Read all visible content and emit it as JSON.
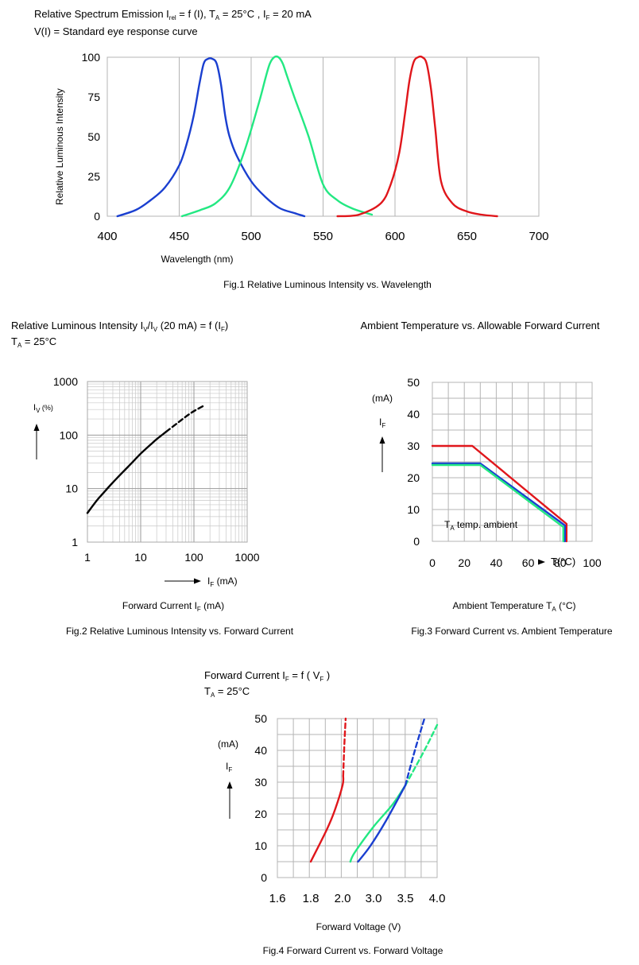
{
  "colors": {
    "blue": "#1a3fd0",
    "green": "#23e882",
    "red": "#e0161b",
    "black": "#000000"
  },
  "chart_data": [
    {
      "id": "fig1",
      "type": "line",
      "header_line1": {
        "main": "Relative Spectrum Emission I",
        "rel_sub": "rel",
        "mid": " = f (I), T",
        "a_sub": "A",
        "tail": " = 25°C , I",
        "f_sub": "F",
        "end": " = 20 mA"
      },
      "header_line2": "V(I) = Standard eye response curve",
      "ylabel": "Relative Luminous Intensity",
      "xlabel": "Wavelength (nm)",
      "caption": "Fig.1 Relative Luminous Intensity vs. Wavelength",
      "xlim": [
        400,
        700
      ],
      "ylim": [
        0,
        100
      ],
      "xticks": [
        400,
        450,
        500,
        550,
        600,
        650,
        700
      ],
      "yticks": [
        0,
        25,
        50,
        75,
        100
      ],
      "series": [
        {
          "name": "blue",
          "color": "#1a3fd0",
          "x": [
            407,
            420,
            430,
            440,
            450,
            455,
            460,
            464,
            467,
            470,
            473,
            476,
            479,
            482,
            485,
            490,
            500,
            510,
            520,
            530,
            537
          ],
          "y": [
            0,
            4,
            10,
            18,
            32,
            45,
            63,
            83,
            96,
            99,
            99,
            96,
            83,
            63,
            50,
            38,
            22,
            12,
            5,
            2,
            0
          ]
        },
        {
          "name": "green",
          "color": "#23e882",
          "x": [
            452,
            465,
            475,
            485,
            495,
            505,
            510,
            513,
            516,
            519,
            522,
            525,
            530,
            540,
            550,
            560,
            570,
            580,
            584
          ],
          "y": [
            0,
            4,
            8,
            18,
            40,
            70,
            87,
            96,
            100,
            100,
            96,
            88,
            75,
            50,
            20,
            10,
            5,
            2,
            1
          ]
        },
        {
          "name": "red",
          "color": "#e0161b",
          "x": [
            560,
            575,
            590,
            597,
            603,
            607,
            610,
            613,
            616,
            619,
            622,
            625,
            628,
            632,
            640,
            650,
            660,
            671
          ],
          "y": [
            0,
            1,
            8,
            20,
            40,
            65,
            85,
            97,
            100,
            100,
            96,
            80,
            55,
            22,
            8,
            3,
            1,
            0
          ]
        }
      ]
    },
    {
      "id": "fig2",
      "type": "line",
      "header": {
        "a": "Relative Luminous Intensity I",
        "v1": "V",
        "b": "/I",
        "v2": "V",
        "c": " (20 mA) = f (I",
        "f": "F",
        "d": ")"
      },
      "header_ta": {
        "a": "T",
        "sub": "A",
        "b": " = 25°C"
      },
      "axis_y_name": {
        "a": "I",
        "sub": "V",
        "b": " (%)"
      },
      "axis_x_name": {
        "a": "I",
        "sub": "F",
        "b": " (mA)"
      },
      "bottom_label": {
        "a": "Forward Current I",
        "sub": "F",
        "b": " (mA)"
      },
      "caption": "Fig.2 Relative Luminous Intensity vs. Forward Current",
      "xscale": "log",
      "yscale": "log",
      "xlim": [
        1,
        1000
      ],
      "ylim": [
        1,
        1000
      ],
      "xticks": [
        1,
        10,
        100,
        1000
      ],
      "yticks": [
        1,
        10,
        100,
        1000
      ],
      "series": [
        {
          "name": "solid",
          "style": "solid",
          "color": "#000000",
          "x": [
            1,
            1.5,
            2,
            3,
            5,
            7,
            10,
            15,
            20,
            30
          ],
          "y": [
            3.5,
            6,
            8.3,
            13,
            22,
            31,
            45,
            65,
            84,
            115
          ]
        },
        {
          "name": "extrapolated",
          "style": "dashed",
          "color": "#000000",
          "x": [
            30,
            50,
            70,
            100,
            150
          ],
          "y": [
            115,
            170,
            220,
            280,
            350
          ]
        }
      ]
    },
    {
      "id": "fig3",
      "type": "line",
      "header": "Ambient Temperature vs. Allowable Forward Current",
      "unit_label": "(mA)",
      "axis_y_name": {
        "a": "I",
        "sub": "F"
      },
      "axis_x_name": "T(°C)",
      "annotation": {
        "a": "T",
        "sub": "A",
        "b": " temp. ambient"
      },
      "bottom_label": {
        "a": "Ambient Temperature T",
        "sub": "A",
        "b": " (°C)"
      },
      "caption": "Fig.3 Forward Current vs. Ambient Temperature",
      "xlim": [
        0,
        100
      ],
      "ylim": [
        0,
        50
      ],
      "xticks": [
        0,
        20,
        40,
        60,
        80,
        100
      ],
      "yticks": [
        0,
        10,
        20,
        30,
        40,
        50
      ],
      "series": [
        {
          "name": "red",
          "color": "#e0161b",
          "x": [
            0,
            25,
            84,
            84
          ],
          "y": [
            30,
            30,
            5.5,
            0
          ]
        },
        {
          "name": "blue",
          "color": "#1a3fd0",
          "x": [
            0,
            30,
            83,
            83
          ],
          "y": [
            24.5,
            24.5,
            5,
            0
          ]
        },
        {
          "name": "green",
          "color": "#23e882",
          "x": [
            0,
            30,
            82,
            82
          ],
          "y": [
            24,
            24,
            4.5,
            0
          ]
        }
      ]
    },
    {
      "id": "fig4",
      "type": "line",
      "header": {
        "a": "Forward Current I",
        "f": "F",
        "b": " = f ( V",
        "v": "F",
        "c": " )"
      },
      "header_ta": {
        "a": "T",
        "sub": "A",
        "b": " = 25°C"
      },
      "unit_label": "(mA)",
      "axis_y_name": {
        "a": "I",
        "sub": "F"
      },
      "xlabel": "Forward Voltage (V)",
      "caption": "Fig.4 Forward Current vs. Forward Voltage",
      "xticks": [
        "1.6",
        "1.8",
        "2.0",
        "3.0",
        "3.5",
        "4.0"
      ],
      "ylim": [
        0,
        50
      ],
      "yticks": [
        0,
        10,
        20,
        30,
        40,
        50
      ],
      "series": [
        {
          "name": "red",
          "color": "#e0161b",
          "style": "solid",
          "x": [
            1.8,
            1.9,
            1.95,
            2.0,
            2.02
          ],
          "y": [
            5,
            15,
            21,
            29,
            32
          ]
        },
        {
          "name": "red-extrapolated",
          "color": "#e0161b",
          "style": "dashed",
          "x": [
            2.02,
            2.06,
            2.1
          ],
          "y": [
            32,
            42,
            50
          ]
        },
        {
          "name": "green",
          "color": "#23e882",
          "style": "solid",
          "x": [
            2.25,
            2.4,
            3.0,
            3.3,
            3.5
          ],
          "y": [
            5,
            8,
            16,
            23,
            29
          ]
        },
        {
          "name": "green-extrapolated",
          "color": "#23e882",
          "style": "dashed",
          "x": [
            3.5,
            3.8,
            4.0
          ],
          "y": [
            29,
            40,
            48
          ]
        },
        {
          "name": "blue",
          "color": "#1a3fd0",
          "style": "solid",
          "x": [
            2.5,
            2.9,
            3.2,
            3.5
          ],
          "y": [
            5,
            10,
            18,
            29
          ]
        },
        {
          "name": "blue-extrapolated",
          "color": "#1a3fd0",
          "style": "dashed",
          "x": [
            3.5,
            3.65,
            3.8
          ],
          "y": [
            29,
            40,
            50
          ]
        }
      ]
    }
  ]
}
